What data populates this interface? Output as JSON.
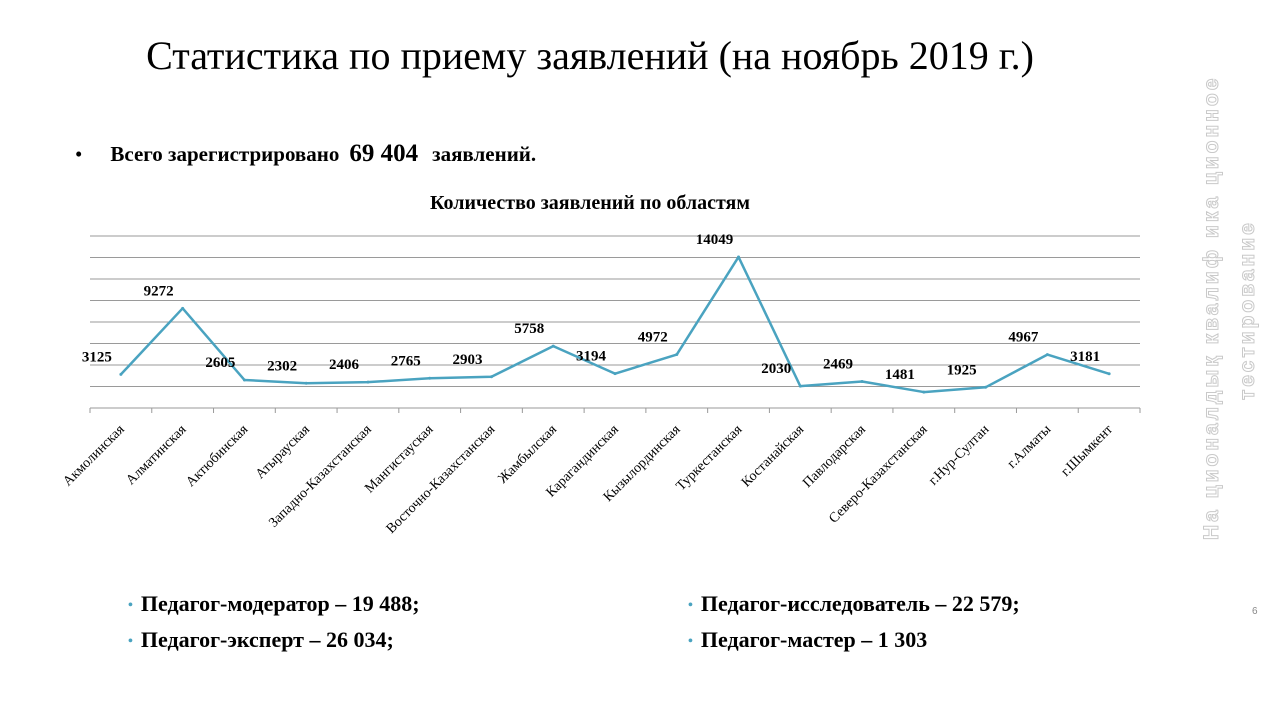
{
  "slide": {
    "title": "Статистика по приему заявлений (на ноябрь 2019 г.)",
    "bullet_dot": "•",
    "total_prefix": "Всего зарегистрировано",
    "total_value": "69 404",
    "total_suffix": "заявлений."
  },
  "chart_data": {
    "type": "line",
    "title": "Количество заявлений по областям",
    "xlabel": "",
    "ylabel": "",
    "ylim": [
      0,
      16000
    ],
    "grid": true,
    "categories": [
      "Акмолинская",
      "Алматинская",
      "Актюбинская",
      "Атырауская",
      "Западно-Казахстанская",
      "Мангистауская",
      "Восточно-Казахстанская",
      "Жамбылская",
      "Карагандинская",
      "Кызылординская",
      "Туркестанская",
      "Костанайская",
      "Павлодарская",
      "Северо-Казахстанская",
      "г.Нур-Султан",
      "г.Алматы",
      "г.Шымкент"
    ],
    "series": [
      {
        "values": [
          3125,
          9272,
          2605,
          2302,
          2406,
          2765,
          2903,
          5758,
          3194,
          4972,
          14049,
          2030,
          2469,
          1481,
          1925,
          4967,
          3181
        ]
      }
    ],
    "line_color": "#4aa3c0"
  },
  "categories_summary": {
    "left": [
      {
        "text": "Педагог-модератор – 19 488;"
      },
      {
        "text": "Педагог-эксперт – 26 034;"
      }
    ],
    "right": [
      {
        "text": "Педагог-исследователь – 22 579;"
      },
      {
        "text": "Педагог-мастер – 1 303"
      }
    ],
    "bullet": "•"
  },
  "side_text": {
    "col1": "На ционалдық  квалиф ика ционное",
    "col2": "тестирование",
    "corner": "6"
  }
}
